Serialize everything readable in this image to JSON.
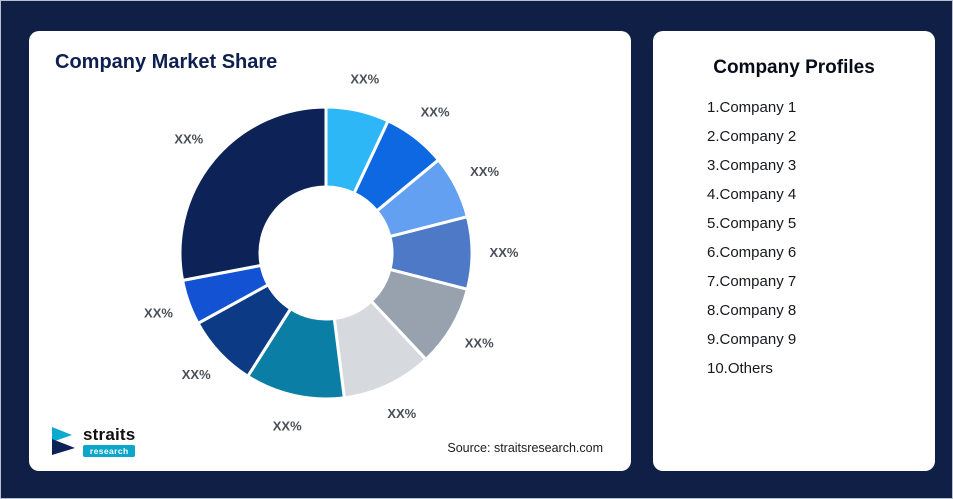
{
  "frame": {
    "background_color": "#101f45",
    "card_color": "#ffffff"
  },
  "chart_card": {
    "title": "Company Market Share",
    "source": "Source: straitsresearch.com",
    "logo_brand": "straits",
    "logo_sub": "research"
  },
  "profiles_card": {
    "title": "Company Profiles",
    "items": [
      "1.Company 1",
      "2.Company 2",
      "3.Company 3",
      "4.Company 4",
      "5.Company 5",
      "6.Company 6",
      "7.Company 7",
      "8.Company 8",
      "9.Company 9",
      "10.Others"
    ]
  },
  "chart_data": {
    "type": "pie",
    "donut": true,
    "title": "Company Market Share",
    "start_angle_deg": 0,
    "direction": "clockwise",
    "legend": "none",
    "note": "All slice labels show placeholder 'XX%'; values are visual estimates of arc size in percent.",
    "segments": [
      {
        "label": "XX%",
        "value": 7,
        "color": "#2eb7f7"
      },
      {
        "label": "XX%",
        "value": 7,
        "color": "#0d68e1"
      },
      {
        "label": "XX%",
        "value": 7,
        "color": "#64a0f2"
      },
      {
        "label": "XX%",
        "value": 8,
        "color": "#4d79c6"
      },
      {
        "label": "XX%",
        "value": 9,
        "color": "#98a2af"
      },
      {
        "label": "XX%",
        "value": 10,
        "color": "#d6dadf"
      },
      {
        "label": "XX%",
        "value": 11,
        "color": "#0b7ea6"
      },
      {
        "label": "XX%",
        "value": 8,
        "color": "#0d3a85"
      },
      {
        "label": "XX%",
        "value": 5,
        "color": "#1353d3"
      },
      {
        "label": "XX%",
        "value": 28,
        "color": "#0d2357"
      }
    ]
  }
}
